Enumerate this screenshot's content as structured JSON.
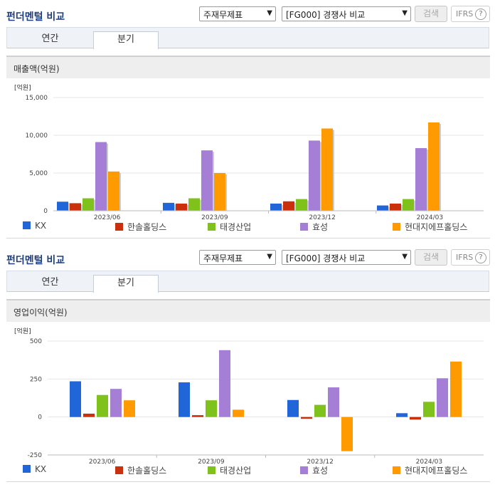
{
  "colors": {
    "kx": "#2166d8",
    "hansol": "#c9300b",
    "taekyung": "#7fc21c",
    "hyosung": "#a57fd6",
    "hyundai": "#ff9a00"
  },
  "panels": [
    {
      "title": "펀더멘털 비교",
      "select1": "주재무제표",
      "select2": "[FG000] 경쟁사 비교",
      "search_label": "검색",
      "ifrs_label": "IFRS",
      "ifrs_help": "?",
      "tab_annual": "연간",
      "tab_quarter": "분기",
      "section_title": "매출액(억원)",
      "chart_data": {
        "type": "bar",
        "unit_label": "[억원]",
        "categories": [
          "2023/06",
          "2023/09",
          "2023/12",
          "2024/03"
        ],
        "y_ticks": [
          "15,000",
          "10,000",
          "5,000",
          "0"
        ],
        "ylim": [
          0,
          15000
        ],
        "series": [
          {
            "name": "KX",
            "color_key": "kx",
            "values": [
              1200,
              1050,
              950,
              700
            ]
          },
          {
            "name": "한솔홀딩스",
            "color_key": "hansol",
            "values": [
              1000,
              950,
              1250,
              950
            ]
          },
          {
            "name": "태경산업",
            "color_key": "taekyung",
            "values": [
              1650,
              1650,
              1550,
              1550
            ]
          },
          {
            "name": "효성",
            "color_key": "hyosung",
            "values": [
              9100,
              8000,
              9300,
              8300
            ]
          },
          {
            "name": "현대지에프홀딩스",
            "color_key": "hyundai",
            "values": [
              5200,
              5000,
              10900,
              11700
            ]
          }
        ]
      }
    },
    {
      "title": "펀더멘털 비교",
      "select1": "주재무제표",
      "select2": "[FG000] 경쟁사 비교",
      "search_label": "검색",
      "ifrs_label": "IFRS",
      "ifrs_help": "?",
      "tab_annual": "연간",
      "tab_quarter": "분기",
      "section_title": "영업이익(억원)",
      "chart_data": {
        "type": "bar",
        "unit_label": "[억원]",
        "categories": [
          "2023/06",
          "2023/09",
          "2023/12",
          "2024/03"
        ],
        "y_ticks": [
          "500",
          "250",
          "0",
          "-250"
        ],
        "ylim": [
          -250,
          500
        ],
        "series": [
          {
            "name": "KX",
            "color_key": "kx",
            "values": [
              235,
              228,
              112,
              25
            ]
          },
          {
            "name": "한솔홀딩스",
            "color_key": "hansol",
            "values": [
              22,
              12,
              -12,
              -17
            ]
          },
          {
            "name": "태경산업",
            "color_key": "taekyung",
            "values": [
              145,
              110,
              80,
              100
            ]
          },
          {
            "name": "효성",
            "color_key": "hyosung",
            "values": [
              185,
              440,
              195,
              255
            ]
          },
          {
            "name": "현대지에프홀딩스",
            "color_key": "hyundai",
            "values": [
              110,
              48,
              -225,
              365
            ]
          }
        ]
      }
    }
  ]
}
